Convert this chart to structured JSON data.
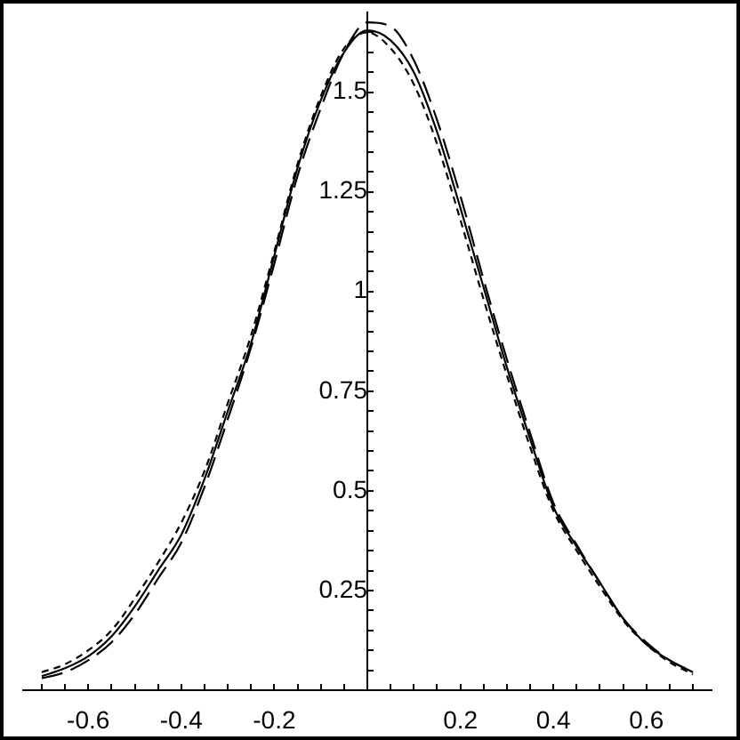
{
  "chart_data": {
    "type": "line",
    "marker": "none",
    "x": [
      -0.7,
      -0.65,
      -0.6,
      -0.55,
      -0.5,
      -0.45,
      -0.4,
      -0.35,
      -0.3,
      -0.25,
      -0.2,
      -0.15,
      -0.1,
      -0.05,
      0,
      0.05,
      0.1,
      0.15,
      0.2,
      0.25,
      0.3,
      0.35,
      0.4,
      0.45,
      0.5,
      0.55,
      0.6,
      0.65,
      0.7
    ],
    "series": [
      {
        "color": "#000000",
        "line_style": "solid",
        "values": [
          0.035,
          0.055,
          0.085,
          0.135,
          0.21,
          0.3,
          0.39,
          0.53,
          0.7,
          0.87,
          1.09,
          1.31,
          1.48,
          1.6,
          1.655,
          1.63,
          1.55,
          1.4,
          1.21,
          1.01,
          0.81,
          0.63,
          0.46,
          0.36,
          0.27,
          0.18,
          0.115,
          0.075,
          0.045
        ]
      },
      {
        "color": "#000000",
        "line_style": "dashed",
        "values": [
          0.03,
          0.045,
          0.075,
          0.12,
          0.19,
          0.28,
          0.37,
          0.51,
          0.68,
          0.86,
          1.07,
          1.29,
          1.46,
          1.6,
          1.675,
          1.665,
          1.58,
          1.43,
          1.24,
          1.03,
          0.83,
          0.645,
          0.47,
          0.365,
          0.27,
          0.18,
          0.12,
          0.075,
          0.045
        ]
      },
      {
        "color": "#000000",
        "line_style": "dotted",
        "values": [
          0.045,
          0.065,
          0.1,
          0.15,
          0.23,
          0.32,
          0.42,
          0.55,
          0.72,
          0.89,
          1.1,
          1.32,
          1.49,
          1.61,
          1.65,
          1.61,
          1.52,
          1.37,
          1.18,
          0.98,
          0.79,
          0.61,
          0.45,
          0.35,
          0.26,
          0.175,
          0.115,
          0.07,
          0.04
        ]
      }
    ],
    "xlim": [
      -0.74,
      0.74
    ],
    "xticks": [
      {
        "value": -0.7,
        "label": null
      },
      {
        "value": -0.65,
        "label": null
      },
      -0.6,
      {
        "value": -0.55,
        "label": null
      },
      {
        "value": -0.5,
        "label": null
      },
      {
        "value": -0.45,
        "label": null
      },
      -0.4,
      {
        "value": -0.35,
        "label": null
      },
      {
        "value": -0.3,
        "label": null
      },
      {
        "value": -0.25,
        "label": null
      },
      -0.2,
      {
        "value": -0.15,
        "label": null
      },
      {
        "value": -0.1,
        "label": null
      },
      {
        "value": -0.05,
        "label": null
      },
      {
        "value": 0.05,
        "label": null
      },
      {
        "value": 0.1,
        "label": null
      },
      {
        "value": 0.15,
        "label": null
      },
      0.2,
      {
        "value": 0.25,
        "label": null
      },
      {
        "value": 0.3,
        "label": null
      },
      {
        "value": 0.35,
        "label": null
      },
      0.4,
      {
        "value": 0.45,
        "label": null
      },
      {
        "value": 0.5,
        "label": null
      },
      {
        "value": 0.55,
        "label": null
      },
      0.6,
      {
        "value": 0.65,
        "label": null
      },
      {
        "value": 0.7,
        "label": null
      }
    ],
    "ylim": [
      0,
      1.7
    ],
    "yticks": [
      {
        "value": 0.05,
        "label": null
      },
      {
        "value": 0.1,
        "label": null
      },
      {
        "value": 0.15,
        "label": null
      },
      {
        "value": 0.2,
        "label": null
      },
      0.25,
      {
        "value": 0.3,
        "label": null
      },
      {
        "value": 0.35,
        "label": null
      },
      {
        "value": 0.4,
        "label": null
      },
      {
        "value": 0.45,
        "label": null
      },
      0.5,
      {
        "value": 0.55,
        "label": null
      },
      {
        "value": 0.6,
        "label": null
      },
      {
        "value": 0.65,
        "label": null
      },
      {
        "value": 0.7,
        "label": null
      },
      0.75,
      {
        "value": 0.8,
        "label": null
      },
      {
        "value": 0.85,
        "label": null
      },
      {
        "value": 0.9,
        "label": null
      },
      {
        "value": 0.95,
        "label": null
      },
      1,
      {
        "value": 1.05,
        "label": null
      },
      {
        "value": 1.1,
        "label": null
      },
      {
        "value": 1.15,
        "label": null
      },
      {
        "value": 1.2,
        "label": null
      },
      1.25,
      {
        "value": 1.3,
        "label": null
      },
      {
        "value": 1.35,
        "label": null
      },
      {
        "value": 1.4,
        "label": null
      },
      {
        "value": 1.45,
        "label": null
      },
      1.5,
      {
        "value": 1.55,
        "label": null
      },
      {
        "value": 1.6,
        "label": null
      },
      {
        "value": 1.65,
        "label": null
      }
    ]
  }
}
